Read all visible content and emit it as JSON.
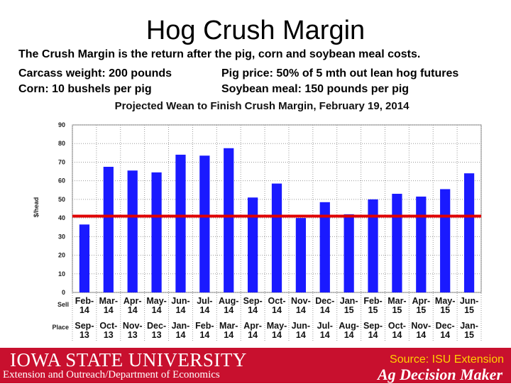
{
  "slide": {
    "title": "Hog Crush Margin",
    "line1": "The Crush Margin is the return after the pig, corn and soybean meal costs.",
    "line2a": "Carcass weight:  200 pounds",
    "line2b": "Pig price:  50% of 5 mth out lean hog futures",
    "line3a": "Corn:  10 bushels per pig",
    "line3b": "Soybean meal:  150 pounds per pig"
  },
  "footer": {
    "logo_text": "IOWA STATE UNIVERSITY",
    "subtitle": "Extension and Outreach/Department of Economics",
    "source": "Source: ISU Extension",
    "brand": "Ag Decision Maker"
  },
  "chart_data": {
    "type": "bar",
    "title": "Projected Wean to Finish Crush Margin, February 19, 2014",
    "ylabel": "$/head",
    "ylim": [
      0,
      90
    ],
    "yticks": [
      0,
      10,
      20,
      30,
      40,
      50,
      60,
      70,
      80,
      90
    ],
    "grid": true,
    "bar_color": "#1a1aff",
    "reference_line": {
      "value": 41,
      "color": "#e00000"
    },
    "row_labels": {
      "sell": "Sell",
      "place": "Place"
    },
    "categories": [
      {
        "sell": [
          "Feb-",
          "14"
        ],
        "place": [
          "Sep-",
          "13"
        ]
      },
      {
        "sell": [
          "Mar-",
          "14"
        ],
        "place": [
          "Oct-",
          "13"
        ]
      },
      {
        "sell": [
          "Apr-",
          "14"
        ],
        "place": [
          "Nov-",
          "13"
        ]
      },
      {
        "sell": [
          "May-",
          "14"
        ],
        "place": [
          "Dec-",
          "13"
        ]
      },
      {
        "sell": [
          "Jun-",
          "14"
        ],
        "place": [
          "Jan-",
          "14"
        ]
      },
      {
        "sell": [
          "Jul-",
          "14"
        ],
        "place": [
          "Feb-",
          "14"
        ]
      },
      {
        "sell": [
          "Aug-",
          "14"
        ],
        "place": [
          "Mar-",
          "14"
        ]
      },
      {
        "sell": [
          "Sep-",
          "14"
        ],
        "place": [
          "Apr-",
          "14"
        ]
      },
      {
        "sell": [
          "Oct-",
          "14"
        ],
        "place": [
          "May-",
          "14"
        ]
      },
      {
        "sell": [
          "Nov-",
          "14"
        ],
        "place": [
          "Jun-",
          "14"
        ]
      },
      {
        "sell": [
          "Dec-",
          "14"
        ],
        "place": [
          "Jul-",
          "14"
        ]
      },
      {
        "sell": [
          "Jan-",
          "15"
        ],
        "place": [
          "Aug-",
          "14"
        ]
      },
      {
        "sell": [
          "Feb-",
          "15"
        ],
        "place": [
          "Sep-",
          "14"
        ]
      },
      {
        "sell": [
          "Mar-",
          "15"
        ],
        "place": [
          "Oct-",
          "14"
        ]
      },
      {
        "sell": [
          "Apr-",
          "15"
        ],
        "place": [
          "Nov-",
          "14"
        ]
      },
      {
        "sell": [
          "May-",
          "15"
        ],
        "place": [
          "Dec-",
          "14"
        ]
      },
      {
        "sell": [
          "Jun-",
          "15"
        ],
        "place": [
          "Jan-",
          "15"
        ]
      }
    ],
    "values": [
      36.5,
      67.5,
      65.5,
      64.5,
      74,
      73.5,
      77.5,
      51,
      58.5,
      40,
      48.5,
      42,
      50,
      53,
      51.5,
      55.5,
      64
    ]
  }
}
